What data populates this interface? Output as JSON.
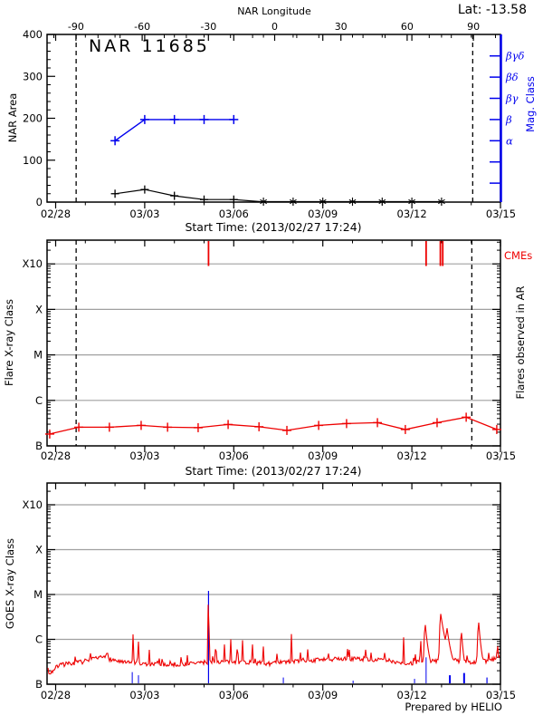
{
  "header": {
    "lat_label": "Lat: -13.58",
    "title": "NAR 11685",
    "credit": "Prepared by HELIO"
  },
  "colors": {
    "accent_blue": "#0000ee",
    "accent_red": "#ee0000",
    "grid_gray": "#a0a0a0",
    "black": "#000000"
  },
  "chart_data": [
    {
      "type": "line",
      "panel": "nar_area",
      "title": "NAR 11685",
      "ylabel": "NAR Area",
      "ylim": [
        0,
        400
      ],
      "ytick_labels": [
        "0",
        "100",
        "200",
        "300",
        "400"
      ],
      "top_axis": {
        "label": "NAR Longitude",
        "tick_values": [
          -90,
          -60,
          -30,
          0,
          30,
          60,
          90
        ],
        "tick_labels": [
          "-90",
          "-60",
          "-30",
          "0",
          "30",
          "60",
          "90"
        ]
      },
      "x_tick_days": [
        0,
        3,
        6,
        9,
        12,
        15
      ],
      "x_tick_labels": [
        "02/28",
        "03/03",
        "03/06",
        "03/09",
        "03/12",
        "03/15"
      ],
      "xlabel": "Start Time: (2013/02/27 17:24)",
      "right_axis": {
        "label": "Mag. Class",
        "tick_labels": [
          "βγδ",
          "βδ",
          "βγ",
          "β",
          "α",
          "",
          ""
        ]
      },
      "dashed_days": [
        0.69,
        14.05
      ],
      "series_area": {
        "name": "NAR Area",
        "x_days": [
          2,
          3,
          4,
          5,
          6,
          6.9,
          13.0
        ],
        "values": [
          20,
          30,
          15,
          6,
          6,
          1,
          1
        ],
        "plus_marker_days": [
          2,
          3,
          4,
          5,
          6
        ],
        "star_marker_days": [
          7,
          8,
          9,
          10,
          11,
          12,
          13
        ]
      },
      "series_mag": {
        "name": "Mag. Class",
        "x_days": [
          2,
          3,
          4,
          5,
          6
        ],
        "class_values": [
          "α",
          "β",
          "β",
          "β",
          "β"
        ]
      }
    },
    {
      "type": "line",
      "panel": "flares_in_ar",
      "ylabel": "Flare X-ray Class",
      "ytick_labels": [
        "B",
        "C",
        "M",
        "X",
        "X10"
      ],
      "right_label": "Flares observed in AR",
      "cme_label": "CMEs",
      "cme_days": [
        5.15,
        12.48,
        12.96,
        13.04
      ],
      "x_tick_days": [
        0,
        3,
        6,
        9,
        12,
        15
      ],
      "x_tick_labels": [
        "02/28",
        "03/03",
        "03/06",
        "03/09",
        "03/12",
        "03/15"
      ],
      "xlabel": "Start Time: (2013/02/27 17:24)",
      "dashed_days": [
        0.69,
        14.02
      ],
      "series": {
        "name": "Flare X-ray Class",
        "x_days": [
          -0.2,
          0.78,
          1.81,
          2.88,
          3.77,
          4.8,
          5.81,
          6.85,
          7.79,
          8.86,
          9.8,
          10.84,
          11.78,
          12.85,
          13.83,
          14.86
        ],
        "decades_above_B": [
          0.26,
          0.41,
          0.41,
          0.45,
          0.41,
          0.4,
          0.47,
          0.42,
          0.34,
          0.45,
          0.49,
          0.51,
          0.36,
          0.51,
          0.63,
          0.36
        ]
      }
    },
    {
      "type": "line",
      "panel": "goes_xray",
      "ylabel": "GOES X-ray Class",
      "ytick_labels": [
        "B",
        "C",
        "M",
        "X",
        "X10"
      ],
      "x_tick_days": [
        0,
        3,
        6,
        9,
        12,
        15
      ],
      "x_tick_labels": [
        "02/28",
        "03/03",
        "03/06",
        "03/09",
        "03/12",
        "03/15"
      ],
      "blue_events": {
        "x_days": [
          2.58,
          2.79,
          5.15,
          7.67,
          10.02,
          12.09,
          12.48,
          13.28,
          13.76,
          14.53
        ],
        "top_decades": [
          0.27,
          0.2,
          2.08,
          0.15,
          0.08,
          0.12,
          0.6,
          0.2,
          0.25,
          0.15
        ],
        "widths": [
          1,
          1,
          1.2,
          1,
          1,
          1,
          1,
          2,
          2,
          1.2
        ]
      },
      "curve": {
        "name": "GOES flux",
        "seed": 7,
        "noise": 0.1,
        "baseline": [
          [
            -0.26,
            0.2
          ],
          [
            0.1,
            0.42
          ],
          [
            0.9,
            0.5
          ],
          [
            1.6,
            0.6
          ],
          [
            2.3,
            0.48
          ],
          [
            3.2,
            0.44
          ],
          [
            4.2,
            0.44
          ],
          [
            5.2,
            0.5
          ],
          [
            6.2,
            0.5
          ],
          [
            7.2,
            0.46
          ],
          [
            8.2,
            0.52
          ],
          [
            9.3,
            0.55
          ],
          [
            10.3,
            0.57
          ],
          [
            11.3,
            0.52
          ],
          [
            11.9,
            0.46
          ],
          [
            12.6,
            0.5
          ],
          [
            13.3,
            0.55
          ],
          [
            14.0,
            0.48
          ],
          [
            14.6,
            0.52
          ],
          [
            14.98,
            0.6
          ]
        ],
        "spikes": [
          [
            0.35,
            0.5,
            1,
            2
          ],
          [
            0.66,
            0.62,
            1,
            1.5
          ],
          [
            1.75,
            0.7,
            5,
            6
          ],
          [
            2.61,
            1.12,
            0.9,
            1.3
          ],
          [
            2.79,
            0.95,
            0.8,
            1.2
          ],
          [
            3.16,
            0.78,
            0.8,
            1.2
          ],
          [
            3.5,
            0.6,
            1,
            2
          ],
          [
            5.15,
            2.12,
            0.7,
            1.1
          ],
          [
            5.4,
            0.85,
            1.5,
            2.5
          ],
          [
            5.69,
            0.9,
            0.7,
            1
          ],
          [
            5.9,
            1.0,
            0.7,
            1.1
          ],
          [
            6.11,
            0.85,
            0.7,
            1
          ],
          [
            6.3,
            1.0,
            0.7,
            1.1
          ],
          [
            6.63,
            0.92,
            0.7,
            1
          ],
          [
            7.0,
            0.85,
            0.7,
            1
          ],
          [
            7.45,
            0.78,
            0.6,
            1
          ],
          [
            7.94,
            1.18,
            0.7,
            1.3
          ],
          [
            8.49,
            0.8,
            0.6,
            1
          ],
          [
            9.2,
            0.72,
            0.8,
            1.2
          ],
          [
            9.89,
            0.82,
            1,
            1.6
          ],
          [
            10.44,
            0.8,
            1,
            1.6
          ],
          [
            11.1,
            0.68,
            0.8,
            1.2
          ],
          [
            11.72,
            1.12,
            0.7,
            1.2
          ],
          [
            12.3,
            1.0,
            1,
            1.5
          ],
          [
            12.45,
            1.35,
            1.5,
            6
          ],
          [
            12.97,
            1.58,
            1.5,
            11
          ],
          [
            13.18,
            1.28,
            1.5,
            8
          ],
          [
            13.67,
            1.18,
            1.5,
            4
          ],
          [
            14.25,
            1.4,
            1.5,
            5
          ],
          [
            14.6,
            0.75,
            1,
            2
          ],
          [
            14.9,
            0.85,
            2,
            2
          ]
        ]
      },
      "credit": "Prepared by HELIO"
    }
  ]
}
